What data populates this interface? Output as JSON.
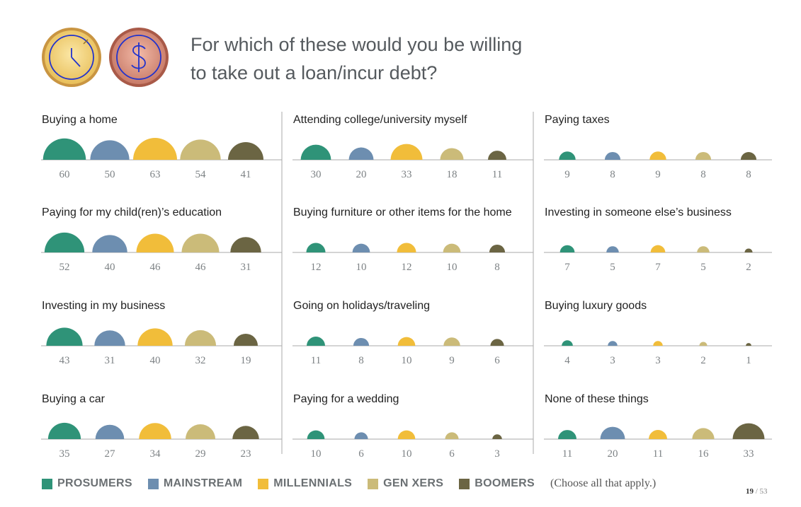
{
  "title": {
    "line1": "For which of these would you be willing",
    "line2": "to take out a loan/incur debt?"
  },
  "icons": [
    "clock-icon",
    "dollar-icon"
  ],
  "colors": {
    "prosumers": "#2f9378",
    "mainstream": "#6d8eb0",
    "millennials": "#f1bd3a",
    "genxers": "#cbbb79",
    "boomers": "#6b6543",
    "axis": "#aaaaaa",
    "divider": "#aaaaaa"
  },
  "legend": [
    {
      "label": "PROSUMERS",
      "color": "#2f9378"
    },
    {
      "label": "MAINSTREAM",
      "color": "#6d8eb0"
    },
    {
      "label": "MILLENNIALS",
      "color": "#f1bd3a"
    },
    {
      "label": "GEN XERS",
      "color": "#cbbb79"
    },
    {
      "label": "BOOMERS",
      "color": "#6b6543"
    }
  ],
  "note": "(Choose all that apply.)",
  "page": {
    "current": "19",
    "total": "/ 53"
  },
  "chart_data": {
    "type": "semicircle-bubble",
    "series_names": [
      "PROSUMERS",
      "MAINSTREAM",
      "MILLENNIALS",
      "GEN XERS",
      "BOOMERS"
    ],
    "panels": [
      {
        "title": "Buying a home",
        "values": [
          60,
          50,
          63,
          54,
          41
        ]
      },
      {
        "title": "Paying for my child(ren)’s education",
        "values": [
          52,
          40,
          46,
          46,
          31
        ]
      },
      {
        "title": "Investing in my business",
        "values": [
          43,
          31,
          40,
          32,
          19
        ]
      },
      {
        "title": "Buying a car",
        "values": [
          35,
          27,
          34,
          29,
          23
        ]
      },
      {
        "title": "Attending college/university myself",
        "values": [
          30,
          20,
          33,
          18,
          11
        ]
      },
      {
        "title": "Buying furniture or other items for the home",
        "values": [
          12,
          10,
          12,
          10,
          8
        ]
      },
      {
        "title": "Going on holidays/traveling",
        "values": [
          11,
          8,
          10,
          9,
          6
        ]
      },
      {
        "title": "Paying for a wedding",
        "values": [
          10,
          6,
          10,
          6,
          3
        ]
      },
      {
        "title": "Paying taxes",
        "values": [
          9,
          8,
          9,
          8,
          8
        ]
      },
      {
        "title": "Investing in someone else’s business",
        "values": [
          7,
          5,
          7,
          5,
          2
        ]
      },
      {
        "title": "Buying luxury goods",
        "values": [
          4,
          3,
          3,
          2,
          1
        ]
      },
      {
        "title": "None of these things",
        "values": [
          11,
          20,
          11,
          16,
          33
        ]
      }
    ]
  }
}
